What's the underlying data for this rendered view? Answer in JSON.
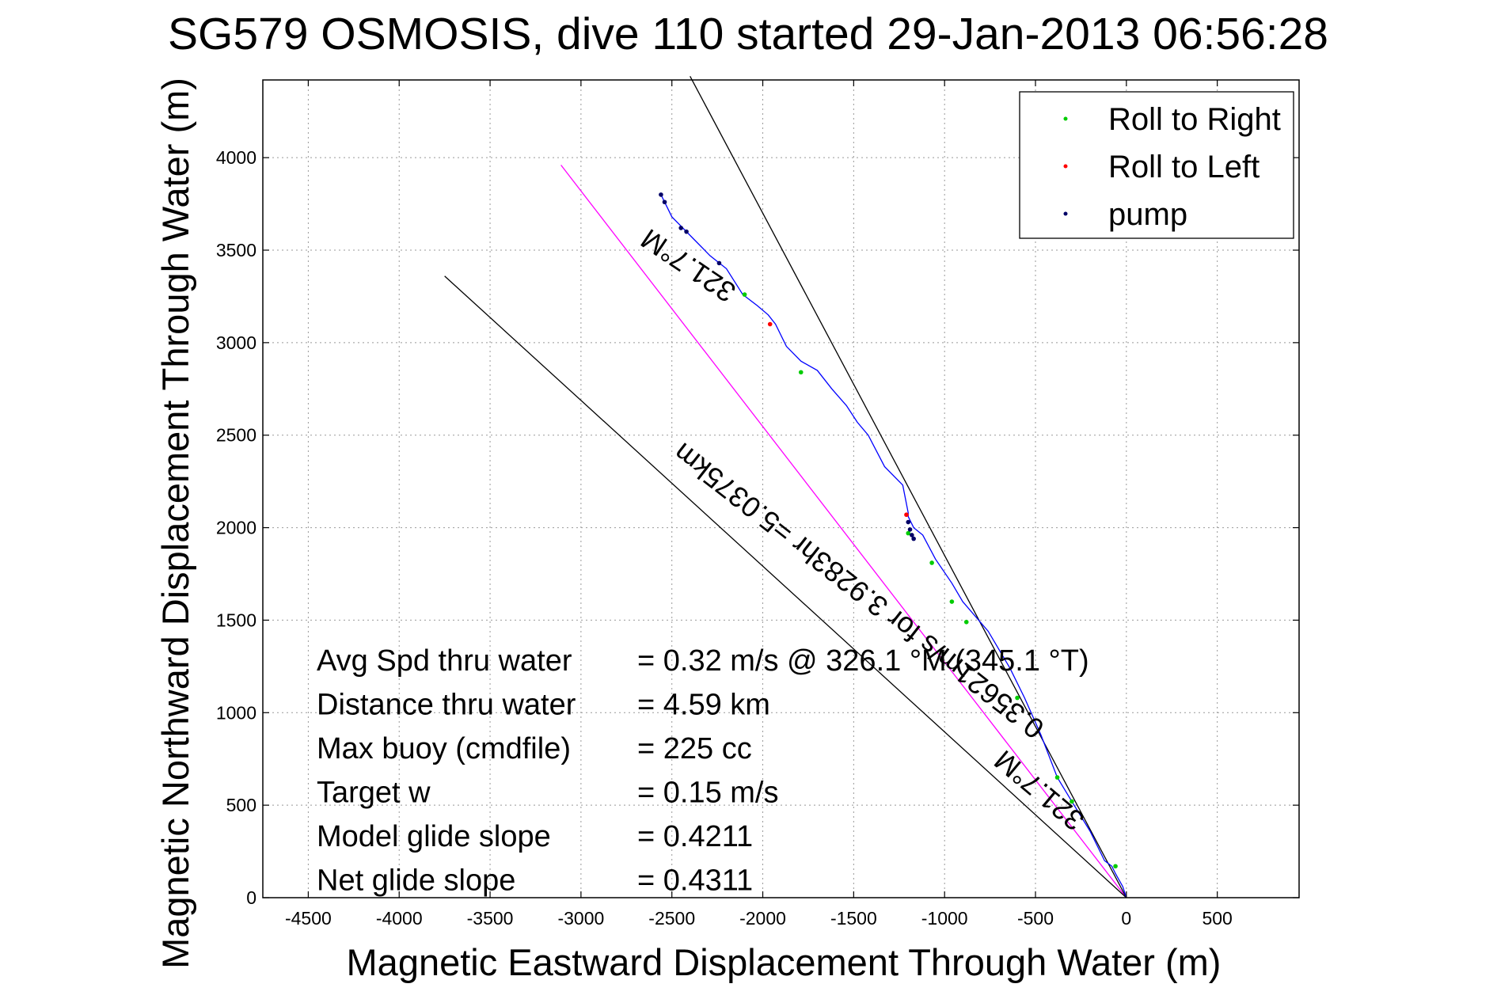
{
  "chart_data": {
    "type": "line",
    "title": "SG579 OSMOSIS, dive 110 started 29-Jan-2013 06:56:28",
    "xlabel": "Magnetic Eastward Displacement Through Water (m)",
    "ylabel": "Magnetic Northward Displacement Through Water (m)",
    "xlim": [
      -4750,
      950
    ],
    "ylim": [
      0,
      4420
    ],
    "xticks": [
      -4500,
      -4000,
      -3500,
      -3000,
      -2500,
      -2000,
      -1500,
      -1000,
      -500,
      0,
      500
    ],
    "yticks": [
      0,
      500,
      1000,
      1500,
      2000,
      2500,
      3000,
      3500,
      4000
    ],
    "grid": true,
    "legend_position": "top-right",
    "legend": [
      {
        "label": "Roll to Right",
        "color": "#00cc00"
      },
      {
        "label": "Roll to Left",
        "color": "#ff0000"
      },
      {
        "label": "pump",
        "color": "#000066"
      }
    ],
    "track": {
      "color": "#0000ff",
      "x": [
        0,
        -20,
        -60,
        -80,
        -120,
        -200,
        -300,
        -380,
        -470,
        -560,
        -640,
        -760,
        -900,
        -960,
        -1050,
        -1120,
        -1170,
        -1200,
        -1200,
        -1230,
        -1330,
        -1420,
        -1480,
        -1540,
        -1620,
        -1700,
        -1790,
        -1870,
        -1930,
        -1970,
        -2030,
        -2110,
        -2200,
        -2290,
        -2380,
        -2440,
        -2500,
        -2530,
        -2560
      ],
      "y": [
        0,
        60,
        130,
        170,
        200,
        360,
        520,
        650,
        880,
        1080,
        1240,
        1440,
        1600,
        1700,
        1830,
        1960,
        2000,
        2060,
        2080,
        2230,
        2330,
        2500,
        2570,
        2660,
        2750,
        2850,
        2900,
        2980,
        3100,
        3150,
        3200,
        3260,
        3400,
        3470,
        3560,
        3620,
        3680,
        3740,
        3800
      ]
    },
    "heading_lines": [
      {
        "name": "mean heading 326.1",
        "color": "#ff00ff",
        "x": [
          0,
          -3110
        ],
        "y": [
          0,
          3960
        ]
      },
      {
        "name": "321.7 upper",
        "color": "#000000",
        "x": [
          0,
          -2400
        ],
        "y": [
          0,
          4440
        ]
      },
      {
        "name": "321.7 lower",
        "color": "#000000",
        "x": [
          0,
          -3750
        ],
        "y": [
          0,
          3360
        ]
      }
    ],
    "roll_right_points": {
      "x": [
        -60,
        -300,
        -380,
        -600,
        -880,
        -960,
        -1070,
        -2100,
        -1790,
        -1200
      ],
      "y": [
        170,
        520,
        650,
        1080,
        1490,
        1600,
        1810,
        3260,
        2840,
        1970
      ]
    },
    "roll_left_points": {
      "x": [
        -1210,
        -1960
      ],
      "y": [
        2070,
        3100
      ]
    },
    "pump_points": {
      "x": [
        -2560,
        -2540,
        -2450,
        -2420,
        -2240,
        -1200,
        -1190,
        -1180,
        -1170
      ],
      "y": [
        3800,
        3760,
        3620,
        3600,
        3430,
        2030,
        1990,
        1960,
        1940
      ]
    },
    "line_labels": [
      {
        "text": "321.7°M",
        "x": -2380,
        "y": 3460,
        "rotation": 34
      },
      {
        "text": "0.35621m/s for 3.9283hr =5.0375km",
        "x": -1440,
        "y": 1700,
        "rotation": 38
      },
      {
        "text": "321.7°M",
        "x": -445,
        "y": 620,
        "rotation": 40
      }
    ],
    "annotations": [
      {
        "label": "Avg Spd thru water",
        "value": "=  0.32 m/s @ 326.1 °M (345.1 °T)"
      },
      {
        "label": "Distance thru water",
        "value": "=  4.59 km"
      },
      {
        "label": "Max buoy (cmdfile)",
        "value": "= 225 cc"
      },
      {
        "label": "Target w",
        "value": "= 0.15 m/s"
      },
      {
        "label": "Model glide slope",
        "value": "= 0.4211"
      },
      {
        "label": "Net glide slope",
        "value": "= 0.4311"
      }
    ]
  }
}
